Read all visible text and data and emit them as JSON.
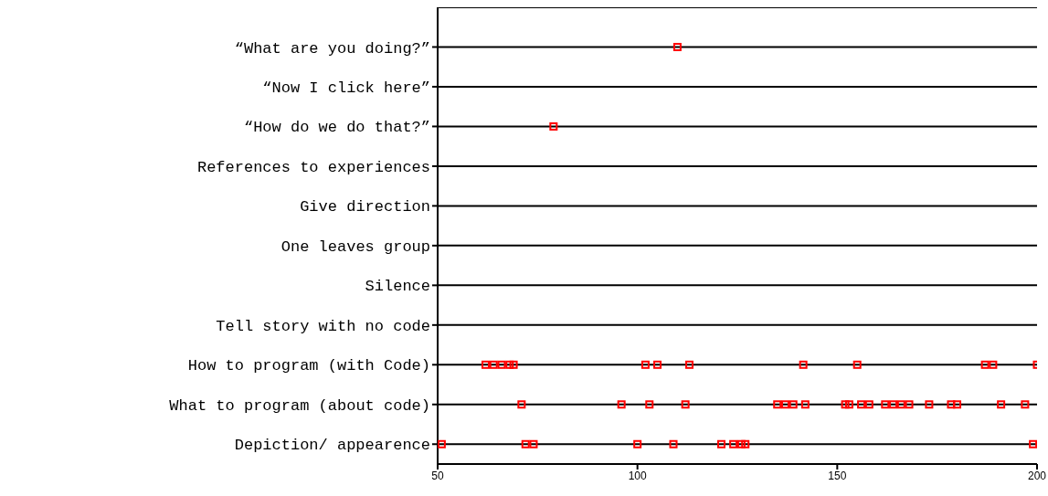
{
  "chart_data": {
    "type": "scatter",
    "orientation": "horizontal",
    "categories": [
      "“What are you doing?”",
      "“Now I click here”",
      "“How do we do that?”",
      "References to experiences",
      "Give direction",
      "One leaves group",
      "Silence",
      "Tell story with no code",
      "How to program (with Code)",
      "What to program (about code)",
      "Depiction/ appearence"
    ],
    "series": [
      {
        "color": "#ff0000",
        "x": [
          "“What are you doing?”",
          "“How do we do that?”"
        ],
        "values": [
          110,
          79
        ]
      },
      {
        "color": "#ff0000",
        "x": [
          "How to program (with Code)",
          "How to program (with Code)",
          "How to program (with Code)",
          "How to program (with Code)",
          "How to program (with Code)",
          "How to program (with Code)",
          "How to program (with Code)",
          "How to program (with Code)",
          "How to program (with Code)",
          "How to program (with Code)",
          "How to program (with Code)",
          "How to program (with Code)",
          "How to program (with Code)"
        ],
        "values": [
          62,
          64,
          66,
          68,
          69,
          102,
          105,
          113,
          141.5,
          155,
          187,
          189,
          200
        ]
      },
      {
        "color": "#ff0000",
        "x": [
          "What to program (about code)",
          "What to program (about code)",
          "What to program (about code)",
          "What to program (about code)",
          "What to program (about code)",
          "What to program (about code)",
          "What to program (about code)",
          "What to program (about code)",
          "What to program (about code)",
          "What to program (about code)",
          "What to program (about code)",
          "What to program (about code)",
          "What to program (about code)",
          "What to program (about code)",
          "What to program (about code)",
          "What to program (about code)",
          "What to program (about code)",
          "What to program (about code)",
          "What to program (about code)",
          "What to program (about code)",
          "What to program (about code)"
        ],
        "values": [
          71,
          96,
          103,
          112,
          135,
          137,
          139,
          142,
          152,
          153,
          156,
          158,
          162,
          164,
          166,
          168,
          173,
          178.5,
          180,
          191,
          197
        ]
      },
      {
        "color": "#ff0000",
        "x": [
          "Depiction/ appearence",
          "Depiction/ appearence",
          "Depiction/ appearence",
          "Depiction/ appearence",
          "Depiction/ appearence",
          "Depiction/ appearence",
          "Depiction/ appearence",
          "Depiction/ appearence",
          "Depiction/ appearence",
          "Depiction/ appearence"
        ],
        "values": [
          51,
          72,
          74,
          100,
          109,
          121,
          124,
          126,
          127,
          199
        ]
      }
    ],
    "xlim": [
      50,
      200
    ],
    "xticks": [
      50,
      100,
      150,
      200
    ],
    "grid": "y",
    "marker": "square",
    "legend": false
  }
}
